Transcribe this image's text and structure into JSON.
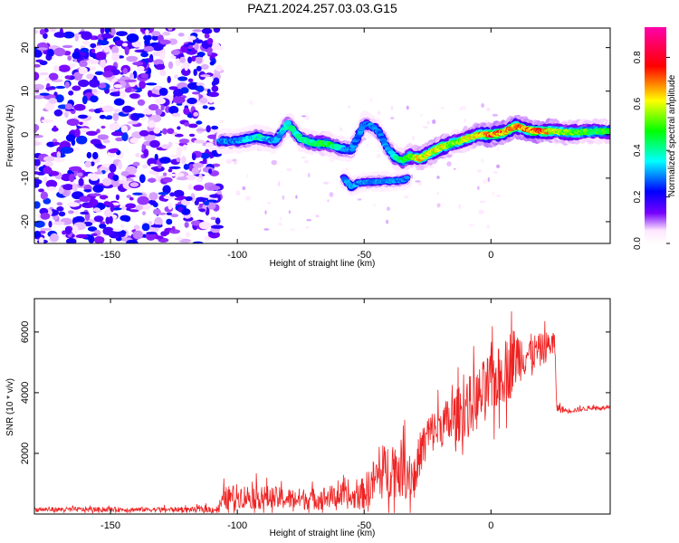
{
  "title": "PAZ1.2024.257.03.03.G15",
  "chart_data": [
    {
      "type": "heatmap",
      "xlabel": "Height of straight line (km)",
      "ylabel": "Frequency (Hz)",
      "xlim": [
        -180,
        47
      ],
      "ylim": [
        -25,
        24.5
      ],
      "x_ticks": [
        -150,
        -100,
        -50,
        0
      ],
      "y_ticks": [
        -20,
        -10,
        0,
        10,
        20
      ],
      "colorbar": {
        "label": "Normalized spectral amplitude",
        "range": [
          0,
          0.93
        ],
        "ticks": [
          0.0,
          0.2,
          0.4,
          0.6,
          0.8
        ],
        "tick_labels": [
          "0.0",
          "0.2",
          "0.4",
          "0.6",
          "0.8"
        ],
        "colors": [
          "#ffffff",
          "#7700ff",
          "#0000ff",
          "#00ffff",
          "#00ff00",
          "#ffff00",
          "#ff0000",
          "#ff00aa"
        ]
      },
      "ridge": {
        "x": [
          -107,
          -100,
          -92,
          -85,
          -80,
          -75,
          -70,
          -65,
          -60,
          -55,
          -50,
          -47,
          -44,
          -41,
          -38,
          -35,
          -32,
          -28,
          -25,
          -20,
          -15,
          -10,
          -5,
          0,
          5,
          10,
          15,
          20,
          25,
          30,
          35,
          40,
          47
        ],
        "y": [
          -1.5,
          -1.5,
          -0.5,
          -1.5,
          2.5,
          -1.0,
          -2.0,
          -2.0,
          -3.0,
          -3.5,
          2.5,
          2.0,
          0.5,
          -3.0,
          -5.0,
          -6.0,
          -5.0,
          -5.5,
          -4.5,
          -3.0,
          -2.0,
          -1.0,
          0.0,
          0.0,
          0.5,
          2.0,
          1.0,
          0.8,
          0.8,
          0.5,
          0.6,
          0.7,
          0.8
        ],
        "amplitude": [
          0.3,
          0.3,
          0.4,
          0.3,
          0.4,
          0.4,
          0.45,
          0.5,
          0.4,
          0.3,
          0.3,
          0.3,
          0.3,
          0.3,
          0.4,
          0.45,
          0.5,
          0.65,
          0.6,
          0.65,
          0.55,
          0.6,
          0.65,
          0.75,
          0.7,
          0.7,
          0.72,
          0.75,
          0.6,
          0.55,
          0.55,
          0.5,
          0.5
        ]
      },
      "branch": {
        "x": [
          -58,
          -55,
          -52,
          -35,
          -33
        ],
        "y": [
          -10.0,
          -12.0,
          -11.0,
          -10.5,
          -10.0
        ],
        "amplitude": [
          0.3,
          0.35,
          0.3,
          0.3,
          0.3
        ]
      },
      "noise_region_x": [
        -180,
        -107
      ],
      "noise_amplitude": [
        0.05,
        0.25
      ]
    },
    {
      "type": "line",
      "xlabel": "Height of straight line (km)",
      "ylabel": "SNR (10 * v/v)",
      "xlim": [
        -180,
        47
      ],
      "ylim": [
        0,
        7100
      ],
      "x_ticks": [
        -150,
        -100,
        -50,
        0
      ],
      "y_ticks": [
        2000,
        4000,
        6000
      ],
      "series": [
        {
          "color": "#ee2222",
          "x": [
            -180,
            -150,
            -120,
            -108,
            -105,
            -100,
            -90,
            -80,
            -70,
            -60,
            -55,
            -50,
            -45,
            -40,
            -35,
            -30,
            -28,
            -25,
            -20,
            -15,
            -10,
            -5,
            0,
            5,
            8,
            10,
            15,
            20,
            25,
            26,
            30,
            35,
            40,
            47
          ],
          "y": [
            150,
            150,
            150,
            150,
            500,
            600,
            550,
            500,
            500,
            600,
            500,
            700,
            1200,
            1500,
            1500,
            1200,
            2000,
            2600,
            2900,
            3100,
            3500,
            3800,
            4300,
            4600,
            5000,
            5200,
            5300,
            5400,
            5700,
            3500,
            3400,
            3450,
            3500,
            3500
          ],
          "noise": [
            100,
            100,
            100,
            150,
            500,
            500,
            500,
            450,
            450,
            500,
            450,
            700,
            1000,
            1200,
            1200,
            1000,
            900,
            900,
            900,
            1100,
            1200,
            1300,
            1400,
            1200,
            1500,
            1200,
            800,
            700,
            500,
            200,
            100,
            100,
            80,
            80
          ]
        }
      ]
    }
  ]
}
